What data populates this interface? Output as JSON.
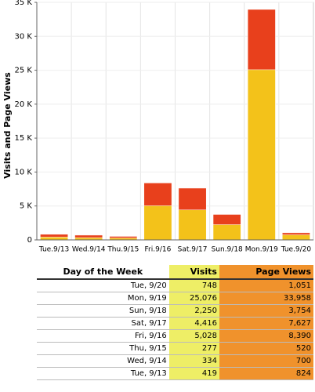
{
  "chart_data": {
    "type": "bar",
    "y_label": "Visits and Page Views",
    "categories": [
      "Tue.9/13",
      "Wed.9/14",
      "Thu.9/15",
      "Fri.9/16",
      "Sat.9/17",
      "Sun.9/18",
      "Mon.9/19",
      "Tue.9/20"
    ],
    "series": [
      {
        "name": "Page Views",
        "color": "#e8401c",
        "values": [
          824,
          700,
          520,
          8390,
          7627,
          3754,
          33958,
          1051
        ]
      },
      {
        "name": "Visits",
        "color": "#f3c21a",
        "values": [
          419,
          334,
          277,
          5028,
          4416,
          2250,
          25076,
          748
        ]
      }
    ],
    "ylim": [
      0,
      35000
    ],
    "yticks": [
      0,
      {
        "value": 5000,
        "label": "5 K"
      },
      {
        "value": 10000,
        "label": "10 K"
      },
      {
        "value": 15000,
        "label": "15 K"
      },
      {
        "value": 20000,
        "label": "20 K"
      },
      {
        "value": 25000,
        "label": "25 K"
      },
      {
        "value": 30000,
        "label": "30 K"
      },
      {
        "value": 35000,
        "label": "35 K"
      }
    ],
    "grid": true
  },
  "table": {
    "header": [
      "Day of the Week",
      "Visits",
      "Page Views"
    ],
    "rows": [
      [
        "Tue, 9/20",
        "748",
        "1,051"
      ],
      [
        "Mon, 9/19",
        "25,076",
        "33,958"
      ],
      [
        "Sun, 9/18",
        "2,250",
        "3,754"
      ],
      [
        "Sat, 9/17",
        "4,416",
        "7,627"
      ],
      [
        "Fri, 9/16",
        "5,028",
        "8,390"
      ],
      [
        "Thu, 9/15",
        "277",
        "520"
      ],
      [
        "Wed, 9/14",
        "334",
        "700"
      ],
      [
        "Tue, 9/13",
        "419",
        "824"
      ]
    ]
  }
}
